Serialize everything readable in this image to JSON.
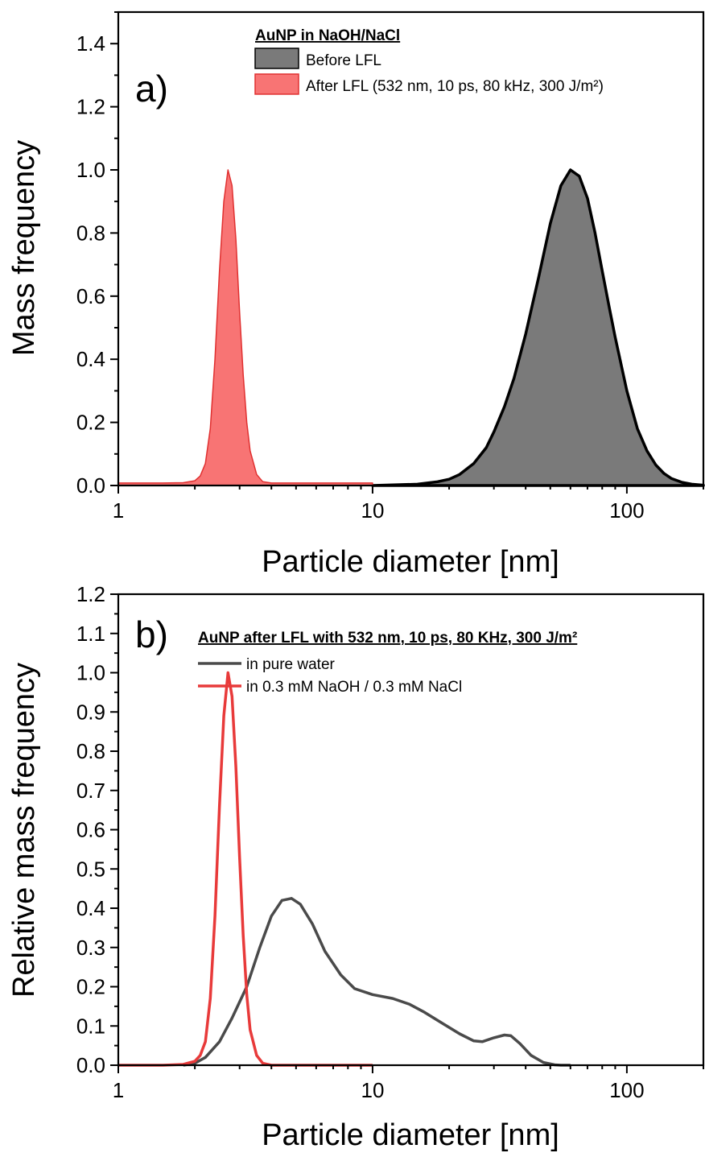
{
  "chart_data": [
    {
      "panel_label": "a)",
      "type": "area",
      "xlabel": "Particle diameter [nm]",
      "ylabel": "Mass frequency",
      "xscale": "log",
      "xlim": [
        1,
        200
      ],
      "ylim": [
        0,
        1.5
      ],
      "xticks": [
        {
          "value": 1,
          "label": "1"
        },
        {
          "value": 10,
          "label": "10"
        },
        {
          "value": 100,
          "label": "100"
        }
      ],
      "yticks": [
        {
          "value": 0.0,
          "label": "0.0"
        },
        {
          "value": 0.2,
          "label": "0.2"
        },
        {
          "value": 0.4,
          "label": "0.4"
        },
        {
          "value": 0.6,
          "label": "0.6"
        },
        {
          "value": 0.8,
          "label": "0.8"
        },
        {
          "value": 1.0,
          "label": "1.0"
        },
        {
          "value": 1.2,
          "label": "1.2"
        },
        {
          "value": 1.4,
          "label": "1.4"
        }
      ],
      "legend": {
        "title": "AuNP in NaOH/NaCl",
        "position": "top-right"
      },
      "series": [
        {
          "name": "Before LFL",
          "color": "#7a7a7a",
          "stroke": "#000000",
          "x": [
            10,
            15,
            18,
            20,
            22,
            25,
            28,
            30,
            33,
            36,
            40,
            45,
            50,
            55,
            60,
            65,
            70,
            75,
            80,
            85,
            90,
            100,
            110,
            120,
            130,
            140,
            150,
            165,
            180,
            200
          ],
          "y": [
            0.0,
            0.004,
            0.012,
            0.02,
            0.035,
            0.07,
            0.12,
            0.17,
            0.25,
            0.34,
            0.48,
            0.66,
            0.83,
            0.95,
            1.0,
            0.98,
            0.91,
            0.8,
            0.68,
            0.57,
            0.47,
            0.3,
            0.18,
            0.11,
            0.065,
            0.038,
            0.022,
            0.01,
            0.004,
            0.001
          ]
        },
        {
          "name": "After LFL (532 nm, 10 ps, 80 kHz, 300 J/m²)",
          "color": "#f87474",
          "stroke": "#e03030",
          "x": [
            1,
            1.5,
            1.8,
            2.0,
            2.1,
            2.2,
            2.3,
            2.4,
            2.5,
            2.6,
            2.7,
            2.8,
            2.9,
            3.0,
            3.1,
            3.2,
            3.3,
            3.5,
            3.7,
            4.0,
            5.0,
            10
          ],
          "y": [
            0.008,
            0.008,
            0.009,
            0.015,
            0.03,
            0.07,
            0.18,
            0.4,
            0.68,
            0.9,
            1.0,
            0.95,
            0.78,
            0.55,
            0.35,
            0.2,
            0.11,
            0.035,
            0.012,
            0.008,
            0.008,
            0.008
          ]
        }
      ]
    },
    {
      "panel_label": "b)",
      "type": "line",
      "xlabel": "Particle diameter [nm]",
      "ylabel": "Relative mass frequency",
      "xscale": "log",
      "xlim": [
        1,
        200
      ],
      "ylim": [
        0,
        1.2
      ],
      "xticks": [
        {
          "value": 1,
          "label": "1"
        },
        {
          "value": 10,
          "label": "10"
        },
        {
          "value": 100,
          "label": "100"
        }
      ],
      "yticks": [
        {
          "value": 0.0,
          "label": "0.0"
        },
        {
          "value": 0.1,
          "label": "0.1"
        },
        {
          "value": 0.2,
          "label": "0.2"
        },
        {
          "value": 0.3,
          "label": "0.3"
        },
        {
          "value": 0.4,
          "label": "0.4"
        },
        {
          "value": 0.5,
          "label": "0.5"
        },
        {
          "value": 0.6,
          "label": "0.6"
        },
        {
          "value": 0.7,
          "label": "0.7"
        },
        {
          "value": 0.8,
          "label": "0.8"
        },
        {
          "value": 0.9,
          "label": "0.9"
        },
        {
          "value": 1.0,
          "label": "1.0"
        },
        {
          "value": 1.1,
          "label": "1.1"
        },
        {
          "value": 1.2,
          "label": "1.2"
        }
      ],
      "legend": {
        "title": "AuNP after LFL with 532 nm, 10 ps, 80 KHz, 300 J/m²",
        "position": "top-right"
      },
      "series": [
        {
          "name": "in pure water",
          "color": "#4a4a4a",
          "x": [
            1.8,
            2.0,
            2.2,
            2.5,
            2.8,
            3.2,
            3.6,
            4.0,
            4.4,
            4.8,
            5.2,
            5.8,
            6.5,
            7.5,
            8.5,
            10,
            12,
            14,
            16,
            19,
            22,
            25,
            27,
            30,
            33,
            35,
            38,
            42,
            47,
            52,
            55,
            60
          ],
          "y": [
            0.0,
            0.005,
            0.02,
            0.06,
            0.12,
            0.2,
            0.3,
            0.38,
            0.42,
            0.425,
            0.41,
            0.36,
            0.29,
            0.23,
            0.195,
            0.18,
            0.17,
            0.155,
            0.135,
            0.105,
            0.08,
            0.062,
            0.06,
            0.07,
            0.077,
            0.075,
            0.055,
            0.025,
            0.007,
            0.001,
            0.0,
            0.0
          ]
        },
        {
          "name": "in 0.3 mM NaOH / 0.3 mM NaCl",
          "color": "#e83a3a",
          "x": [
            1,
            1.5,
            1.8,
            2.0,
            2.1,
            2.2,
            2.3,
            2.4,
            2.5,
            2.6,
            2.7,
            2.8,
            2.9,
            3.0,
            3.1,
            3.2,
            3.3,
            3.5,
            3.7,
            4.0,
            5.0,
            10
          ],
          "y": [
            0.0,
            0.0,
            0.002,
            0.01,
            0.025,
            0.06,
            0.17,
            0.38,
            0.66,
            0.89,
            1.0,
            0.94,
            0.76,
            0.53,
            0.33,
            0.18,
            0.09,
            0.025,
            0.005,
            0.0,
            0.0,
            0.0
          ]
        }
      ]
    }
  ]
}
